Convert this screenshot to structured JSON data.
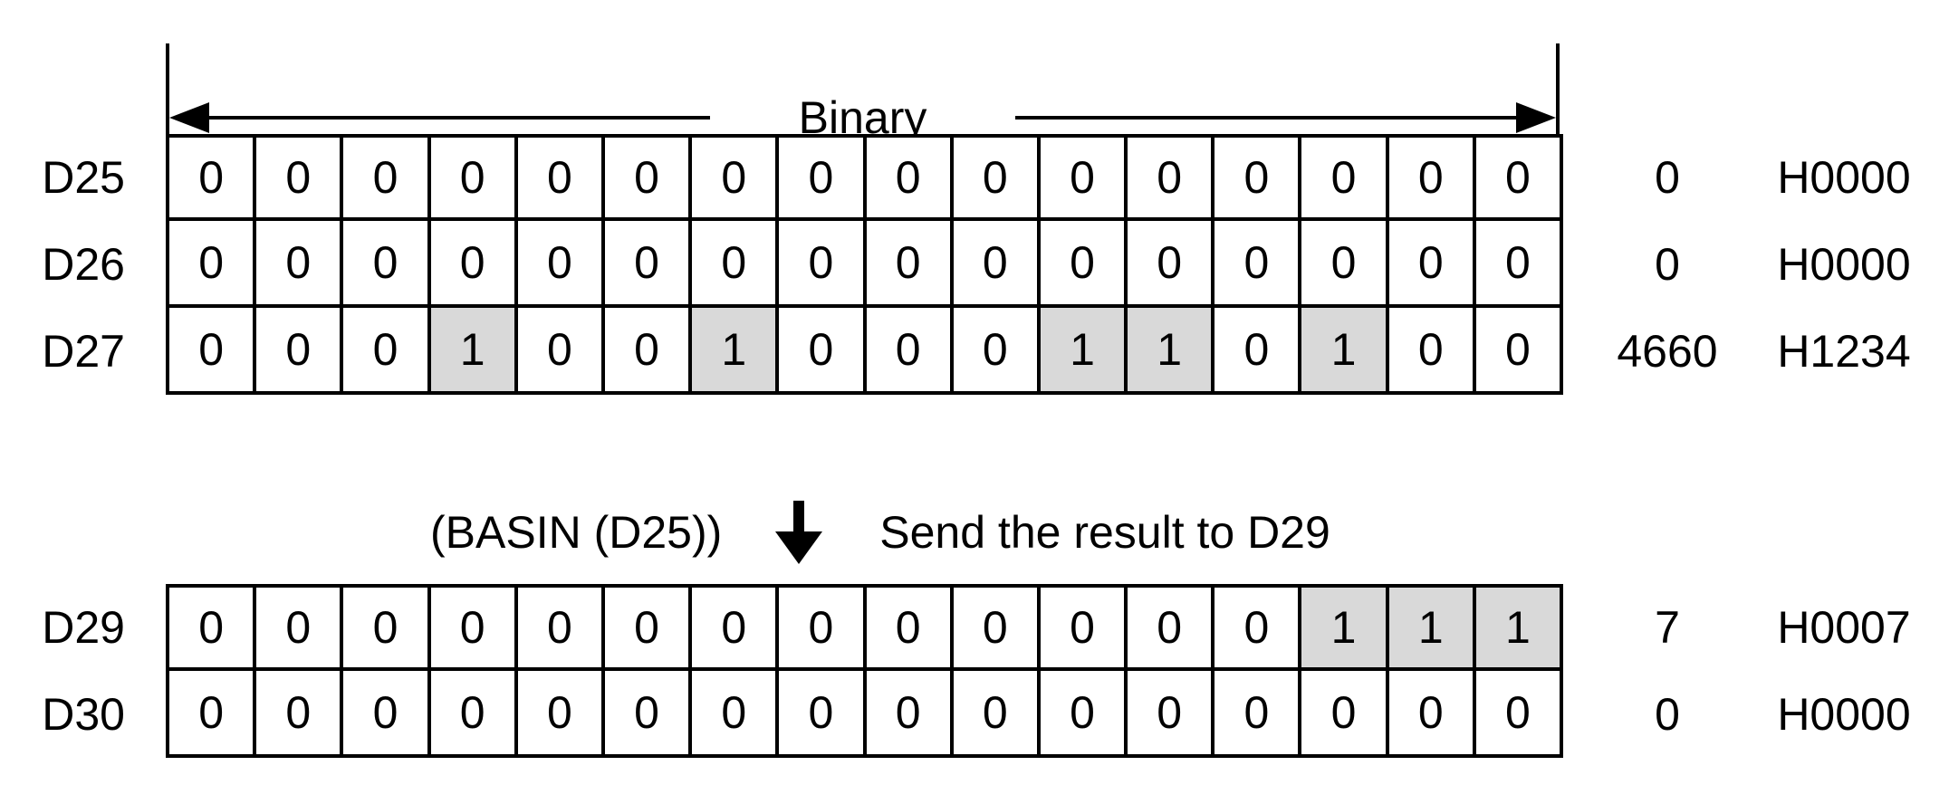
{
  "binary_label": "Binary",
  "highlight_color": "#d9d9d9",
  "annotation": {
    "instruction": "(BASIN (D25))",
    "arrow_icon": "down-arrow",
    "description": "Send the result to D29"
  },
  "tables": [
    {
      "name": "source-registers",
      "rows": [
        {
          "label": "D25",
          "bits": [
            0,
            0,
            0,
            0,
            0,
            0,
            0,
            0,
            0,
            0,
            0,
            0,
            0,
            0,
            0,
            0
          ],
          "decimal": "0",
          "hex": "H0000"
        },
        {
          "label": "D26",
          "bits": [
            0,
            0,
            0,
            0,
            0,
            0,
            0,
            0,
            0,
            0,
            0,
            0,
            0,
            0,
            0,
            0
          ],
          "decimal": "0",
          "hex": "H0000"
        },
        {
          "label": "D27",
          "bits": [
            0,
            0,
            0,
            1,
            0,
            0,
            1,
            0,
            0,
            0,
            1,
            1,
            0,
            1,
            0,
            0
          ],
          "decimal": "4660",
          "hex": "H1234"
        }
      ]
    },
    {
      "name": "result-registers",
      "rows": [
        {
          "label": "D29",
          "bits": [
            0,
            0,
            0,
            0,
            0,
            0,
            0,
            0,
            0,
            0,
            0,
            0,
            0,
            1,
            1,
            1
          ],
          "decimal": "7",
          "hex": "H0007"
        },
        {
          "label": "D30",
          "bits": [
            0,
            0,
            0,
            0,
            0,
            0,
            0,
            0,
            0,
            0,
            0,
            0,
            0,
            0,
            0,
            0
          ],
          "decimal": "0",
          "hex": "H0000"
        }
      ]
    }
  ]
}
